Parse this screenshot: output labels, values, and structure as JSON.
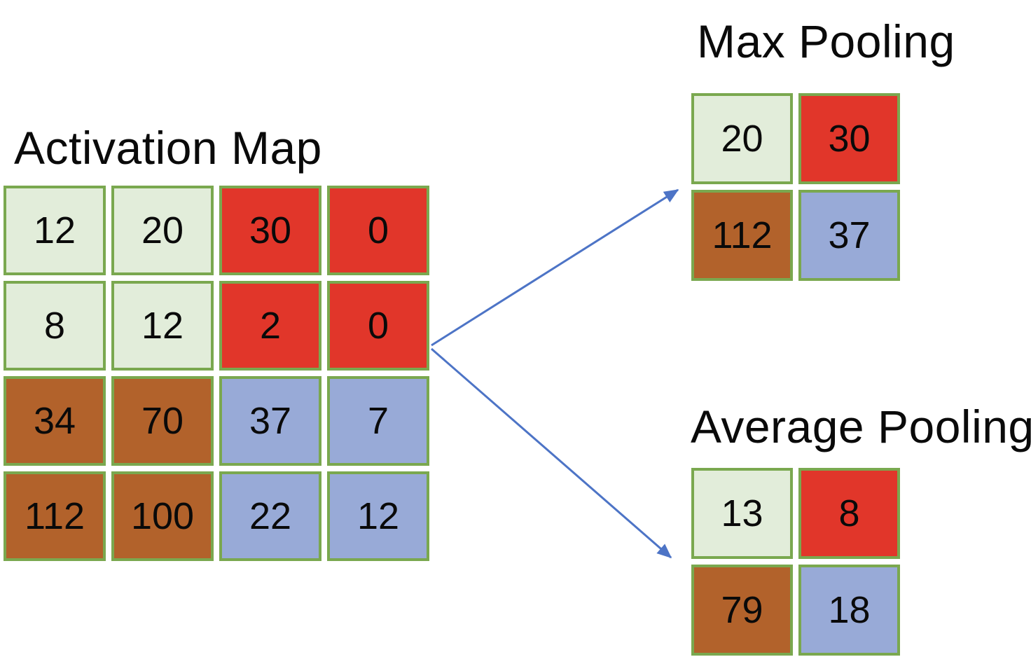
{
  "colors": {
    "background": "#ffffff",
    "text": "#0a0a0a",
    "cell_border": "#7aa84f",
    "arrow": "#4d74c6",
    "light_green": "#e2edda",
    "red": "#e1362a",
    "brown": "#b2622b",
    "blue": "#98aad7"
  },
  "activation_map": {
    "title": "Activation Map",
    "rows": [
      [
        {
          "value": "12",
          "color": "light_green"
        },
        {
          "value": "20",
          "color": "light_green"
        },
        {
          "value": "30",
          "color": "red"
        },
        {
          "value": "0",
          "color": "red"
        }
      ],
      [
        {
          "value": "8",
          "color": "light_green"
        },
        {
          "value": "12",
          "color": "light_green"
        },
        {
          "value": "2",
          "color": "red"
        },
        {
          "value": "0",
          "color": "red"
        }
      ],
      [
        {
          "value": "34",
          "color": "brown"
        },
        {
          "value": "70",
          "color": "brown"
        },
        {
          "value": "37",
          "color": "blue"
        },
        {
          "value": "7",
          "color": "blue"
        }
      ],
      [
        {
          "value": "112",
          "color": "brown"
        },
        {
          "value": "100",
          "color": "brown"
        },
        {
          "value": "22",
          "color": "blue"
        },
        {
          "value": "12",
          "color": "blue"
        }
      ]
    ]
  },
  "max_pooling": {
    "title": "Max Pooling",
    "rows": [
      [
        {
          "value": "20",
          "color": "light_green"
        },
        {
          "value": "30",
          "color": "red"
        }
      ],
      [
        {
          "value": "112",
          "color": "brown"
        },
        {
          "value": "37",
          "color": "blue"
        }
      ]
    ]
  },
  "average_pooling": {
    "title": "Average Pooling",
    "rows": [
      [
        {
          "value": "13",
          "color": "light_green"
        },
        {
          "value": "8",
          "color": "red"
        }
      ],
      [
        {
          "value": "79",
          "color": "brown"
        },
        {
          "value": "18",
          "color": "blue"
        }
      ]
    ]
  }
}
